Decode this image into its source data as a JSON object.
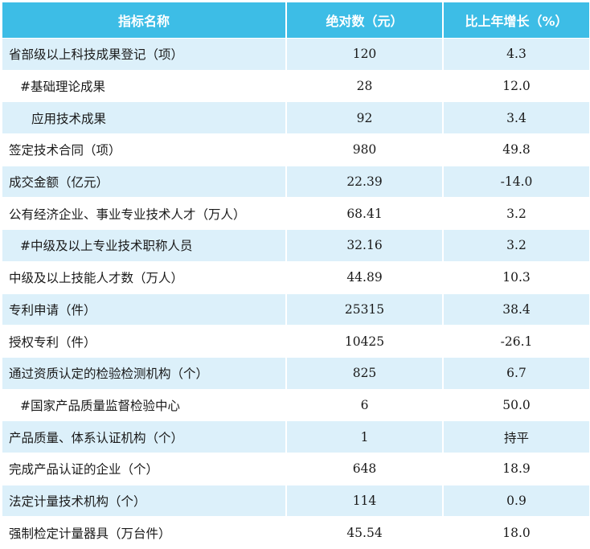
{
  "header": {
    "col1": "指标名称",
    "col2": "绝对数（元）",
    "col3": "比上年增长（%）"
  },
  "rows": [
    {
      "name": "省部级以上科技成果登记（项）",
      "value": "120",
      "growth": "4.3",
      "indent": 0
    },
    {
      "name": "#基础理论成果",
      "value": "28",
      "growth": "12.0",
      "indent": 1
    },
    {
      "name": "应用技术成果",
      "value": "92",
      "growth": "3.4",
      "indent": 2
    },
    {
      "name": "签定技术合同（项）",
      "value": "980",
      "growth": "49.8",
      "indent": 0
    },
    {
      "name": "成交金额（亿元）",
      "value": "22.39",
      "growth": "-14.0",
      "indent": 0
    },
    {
      "name": "公有经济企业、事业专业技术人才（万人）",
      "value": "68.41",
      "growth": "3.2",
      "indent": 0
    },
    {
      "name": "#中级及以上专业技术职称人员",
      "value": "32.16",
      "growth": "3.2",
      "indent": 1
    },
    {
      "name": "中级及以上技能人才数（万人）",
      "value": "44.89",
      "growth": "10.3",
      "indent": 0
    },
    {
      "name": "专利申请（件）",
      "value": "25315",
      "growth": "38.4",
      "indent": 0
    },
    {
      "name": "授权专利（件）",
      "value": "10425",
      "growth": "-26.1",
      "indent": 0
    },
    {
      "name": "通过资质认定的检验检测机构（个）",
      "value": "825",
      "growth": "6.7",
      "indent": 0
    },
    {
      "name": "#国家产品质量监督检验中心",
      "value": "6",
      "growth": "50.0",
      "indent": 1
    },
    {
      "name": "产品质量、体系认证机构（个）",
      "value": "1",
      "growth": "持平",
      "indent": 0
    },
    {
      "name": "完成产品认证的企业（个）",
      "value": "648",
      "growth": "18.9",
      "indent": 0
    },
    {
      "name": "法定计量技术机构（个）",
      "value": "114",
      "growth": "0.9",
      "indent": 0
    },
    {
      "name": "强制检定计量器具（万台件）",
      "value": "45.54",
      "growth": "18.0",
      "indent": 0
    }
  ],
  "colors": {
    "header_bg": "#3dbde6",
    "header_text": "#ffffff",
    "stripe_bg": "#dcf0fa"
  }
}
